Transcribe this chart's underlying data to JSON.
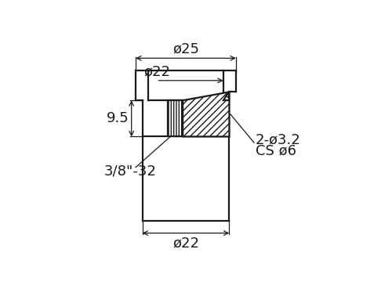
{
  "bg_color": "#ffffff",
  "lc": "#1a1a1a",
  "lw": 1.6,
  "dlw": 0.9,
  "annotations": {
    "phi25": "ø25",
    "phi22_top": "ø22",
    "phi22_bot": "ø22",
    "dim_9_5": "9.5",
    "thread": "3/8\"-32",
    "hole": "2-ø3.2",
    "cs": "CS ø6"
  },
  "fs": 13
}
